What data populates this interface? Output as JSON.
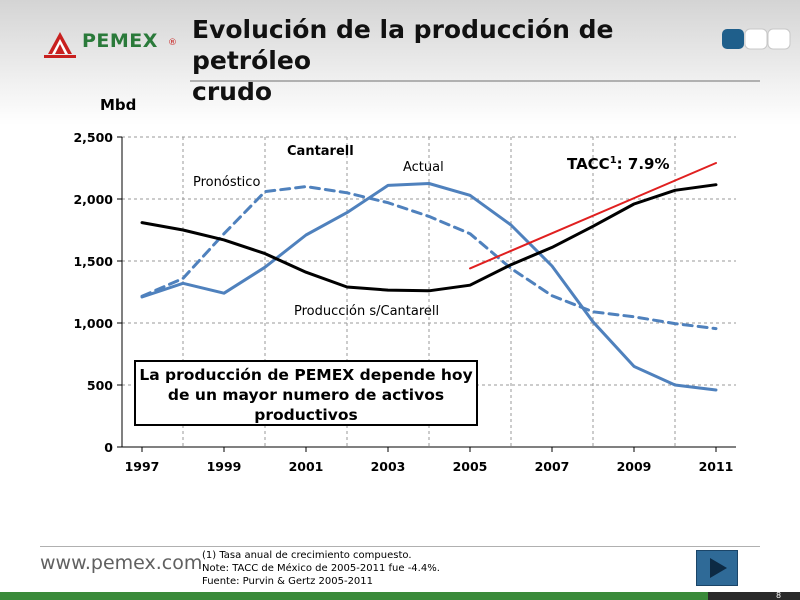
{
  "header": {
    "logo_text": "PEMEX",
    "logo_reg": "®",
    "title_line1": "Evolución de la producción de petróleo",
    "title_line2": "crudo"
  },
  "chart_data": {
    "type": "line",
    "ylabel": "Mbd",
    "ylim": [
      0,
      2500
    ],
    "xlim": [
      1997,
      2011
    ],
    "y_ticks": [
      "0",
      "500",
      "1,000",
      "1,500",
      "2,000",
      "2,500"
    ],
    "x_ticks": [
      "1997",
      "1999",
      "2001",
      "2003",
      "2005",
      "2007",
      "2009",
      "2011"
    ],
    "grid": true,
    "series": [
      {
        "name": "Actual",
        "style": "solid",
        "color": "#4f81bd",
        "x": [
          1997,
          1998,
          1999,
          2000,
          2001,
          2002,
          2003,
          2004,
          2005,
          2006,
          2007,
          2008,
          2009,
          2010,
          2011
        ],
        "values": [
          1210,
          1320,
          1240,
          1450,
          1710,
          1890,
          2110,
          2125,
          2030,
          1790,
          1460,
          1010,
          650,
          500,
          460
        ]
      },
      {
        "name": "Pronóstico",
        "style": "dashed",
        "color": "#4f81bd",
        "x": [
          1997,
          1998,
          1999,
          2000,
          2001,
          2002,
          2003,
          2004,
          2005,
          2006,
          2007,
          2008,
          2009,
          2010,
          2011
        ],
        "values": [
          1215,
          1360,
          1720,
          2060,
          2100,
          2050,
          1970,
          1860,
          1720,
          1440,
          1220,
          1090,
          1050,
          995,
          955
        ]
      },
      {
        "name": "Producción s/Cantarell",
        "style": "solid",
        "color": "#000000",
        "x": [
          1997,
          1998,
          1999,
          2000,
          2001,
          2002,
          2003,
          2004,
          2005,
          2006,
          2007,
          2008,
          2009,
          2010,
          2011
        ],
        "values": [
          1810,
          1750,
          1670,
          1560,
          1410,
          1290,
          1265,
          1260,
          1305,
          1470,
          1610,
          1780,
          1960,
          2070,
          2115
        ]
      },
      {
        "name": "TACC",
        "style": "solid",
        "color": "#e02020",
        "x": [
          2005,
          2011
        ],
        "values": [
          1440,
          2290
        ]
      }
    ],
    "annotations": {
      "cantarell": "Cantarell",
      "actual": "Actual",
      "pronostico": "Pronóstico",
      "sin_cantarell": "Producción s/Cantarell",
      "tacc_prefix": "TACC",
      "tacc_sup": "1",
      "tacc_value": ": 7.9%"
    }
  },
  "callout": {
    "line1": "La producción de PEMEX depende hoy",
    "line2": "de un mayor numero de activos",
    "line3": "productivos"
  },
  "footer": {
    "url": "www.pemex.com",
    "note1": "(1)  Tasa anual de crecimiento compuesto.",
    "note2": "Note:  TACC de México de 2005-2011 fue -4.4%.",
    "note3": "Fuente: Purvin & Gertz 2005-2011",
    "page_number": "8"
  },
  "colors": {
    "brand_green": "#2a7a3a",
    "brand_red": "#c8201f",
    "series_blue": "#4f81bd",
    "tacc_red": "#e02020"
  }
}
